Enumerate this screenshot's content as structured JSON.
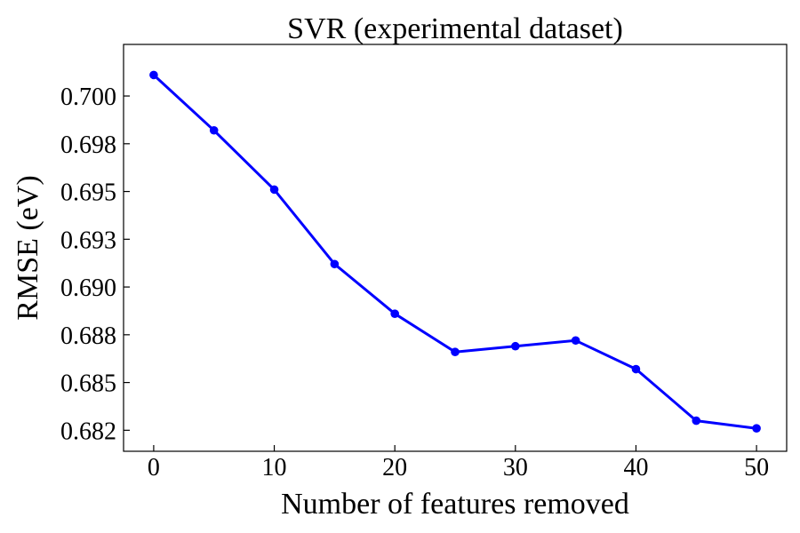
{
  "chart_data": {
    "type": "line",
    "title": "SVR (experimental dataset)",
    "xlabel": "Number of features removed",
    "ylabel": "RMSE (eV)",
    "xlim": [
      -2.5,
      52.5
    ],
    "ylim": [
      0.6814,
      0.7027
    ],
    "xticks": [
      0,
      10,
      20,
      30,
      40,
      50
    ],
    "xtick_labels": [
      "0",
      "10",
      "20",
      "30",
      "40",
      "50"
    ],
    "yticks": [
      0.6825,
      0.685,
      0.6875,
      0.69,
      0.6925,
      0.695,
      0.6975,
      0.7
    ],
    "ytick_labels": [
      "0.682",
      "0.685",
      "0.688",
      "0.690",
      "0.693",
      "0.695",
      "0.698",
      "0.700"
    ],
    "grid": false,
    "series": [
      {
        "color": "#0000ff",
        "x": [
          0,
          5,
          10,
          15,
          20,
          25,
          30,
          35,
          40,
          45,
          50
        ],
        "y": [
          0.7011,
          0.6982,
          0.6951,
          0.6912,
          0.6886,
          0.6866,
          0.6869,
          0.6872,
          0.6857,
          0.683,
          0.6826
        ]
      }
    ]
  }
}
